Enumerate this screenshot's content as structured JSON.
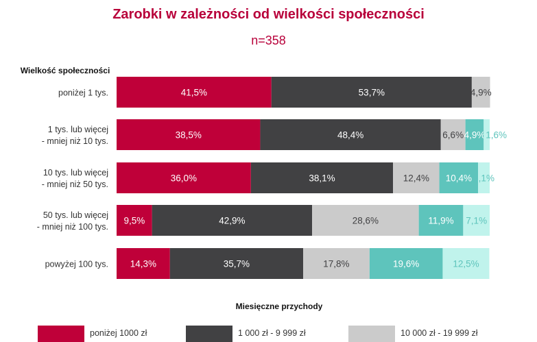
{
  "chart_data": {
    "type": "bar",
    "stacked": true,
    "orientation": "horizontal",
    "title": "Zarobki w zależności od wielkości społeczności",
    "subtitle": "n=358",
    "ylabel": "Wielkość społeczności",
    "legend_title": "Miesięczne przychody",
    "legend_position": "bottom",
    "xlim": [
      0,
      100
    ],
    "categories": [
      [
        "poniżej 1 tys."
      ],
      [
        "1 tys. lub więcej",
        "- mniej niż 10 tys."
      ],
      [
        "10 tys. lub więcej",
        "- mniej niż 50 tys."
      ],
      [
        "50 tys. lub więcej",
        "- mniej niż 100 tys."
      ],
      [
        "powyżej 100 tys."
      ]
    ],
    "series": [
      {
        "name": "poniżej 1000 zł",
        "color": "#bf0039",
        "text_color": "#ffffff",
        "values": [
          41.5,
          38.5,
          36.0,
          9.5,
          14.3
        ],
        "labels": [
          "41,5%",
          "38,5%",
          "36,0%",
          "9,5%",
          "14,3%"
        ]
      },
      {
        "name": "1 000 zł - 9 999 zł",
        "color": "#414143",
        "text_color": "#ffffff",
        "values": [
          53.7,
          48.4,
          38.1,
          42.9,
          35.7
        ],
        "labels": [
          "53,7%",
          "48,4%",
          "38,1%",
          "42,9%",
          "35,7%"
        ]
      },
      {
        "name": "10 000 zł - 19 999 zł",
        "color": "#cbcbcb",
        "text_color": "#414143",
        "values": [
          4.9,
          6.6,
          12.4,
          28.6,
          17.8
        ],
        "labels": [
          "4,9%",
          "6,6%",
          "12,4%",
          "28,6%",
          "17,8%"
        ]
      },
      {
        "name": "",
        "color": "#5ec4bc",
        "text_color": "#ffffff",
        "values": [
          0,
          4.9,
          10.4,
          11.9,
          19.6
        ],
        "labels": [
          "",
          "4,9%",
          "10,4%",
          "11,9%",
          "19,6%"
        ]
      },
      {
        "name": "",
        "color": "#c0f3ec",
        "text_color": "#5ec4bc",
        "values": [
          0,
          1.6,
          3.1,
          7.1,
          12.5
        ],
        "labels": [
          "",
          "1,6%",
          "3,1%",
          "7,1%",
          "12,5%"
        ]
      }
    ]
  }
}
